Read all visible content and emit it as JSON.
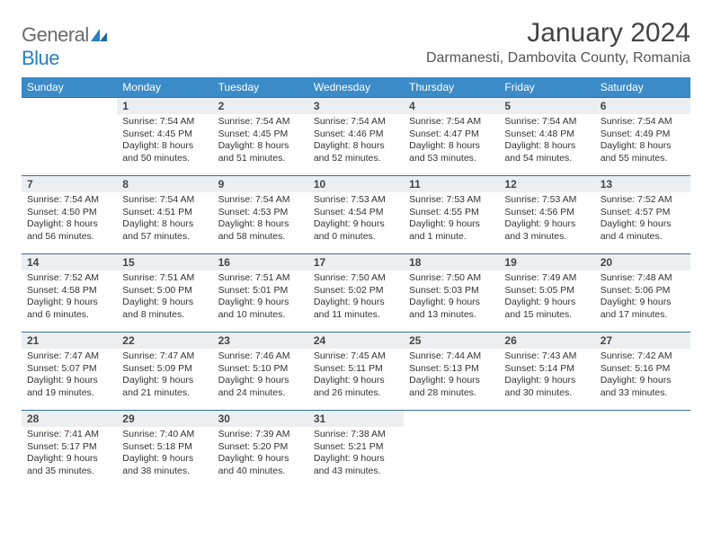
{
  "logo": {
    "general": "General",
    "blue": "Blue"
  },
  "title": "January 2024",
  "location": "Darmanesti, Dambovita County, Romania",
  "colors": {
    "header_bg": "#3b8bc8",
    "header_text": "#ffffff",
    "row_border": "#3b6fa0",
    "daynum_bg": "#eceff1",
    "logo_gray": "#6b6b6b",
    "logo_blue": "#2a7fbf"
  },
  "weekdays": [
    "Sunday",
    "Monday",
    "Tuesday",
    "Wednesday",
    "Thursday",
    "Friday",
    "Saturday"
  ],
  "weeks": [
    [
      {
        "day": "",
        "lines": []
      },
      {
        "day": "1",
        "lines": [
          "Sunrise: 7:54 AM",
          "Sunset: 4:45 PM",
          "Daylight: 8 hours",
          "and 50 minutes."
        ]
      },
      {
        "day": "2",
        "lines": [
          "Sunrise: 7:54 AM",
          "Sunset: 4:45 PM",
          "Daylight: 8 hours",
          "and 51 minutes."
        ]
      },
      {
        "day": "3",
        "lines": [
          "Sunrise: 7:54 AM",
          "Sunset: 4:46 PM",
          "Daylight: 8 hours",
          "and 52 minutes."
        ]
      },
      {
        "day": "4",
        "lines": [
          "Sunrise: 7:54 AM",
          "Sunset: 4:47 PM",
          "Daylight: 8 hours",
          "and 53 minutes."
        ]
      },
      {
        "day": "5",
        "lines": [
          "Sunrise: 7:54 AM",
          "Sunset: 4:48 PM",
          "Daylight: 8 hours",
          "and 54 minutes."
        ]
      },
      {
        "day": "6",
        "lines": [
          "Sunrise: 7:54 AM",
          "Sunset: 4:49 PM",
          "Daylight: 8 hours",
          "and 55 minutes."
        ]
      }
    ],
    [
      {
        "day": "7",
        "lines": [
          "Sunrise: 7:54 AM",
          "Sunset: 4:50 PM",
          "Daylight: 8 hours",
          "and 56 minutes."
        ]
      },
      {
        "day": "8",
        "lines": [
          "Sunrise: 7:54 AM",
          "Sunset: 4:51 PM",
          "Daylight: 8 hours",
          "and 57 minutes."
        ]
      },
      {
        "day": "9",
        "lines": [
          "Sunrise: 7:54 AM",
          "Sunset: 4:53 PM",
          "Daylight: 8 hours",
          "and 58 minutes."
        ]
      },
      {
        "day": "10",
        "lines": [
          "Sunrise: 7:53 AM",
          "Sunset: 4:54 PM",
          "Daylight: 9 hours",
          "and 0 minutes."
        ]
      },
      {
        "day": "11",
        "lines": [
          "Sunrise: 7:53 AM",
          "Sunset: 4:55 PM",
          "Daylight: 9 hours",
          "and 1 minute."
        ]
      },
      {
        "day": "12",
        "lines": [
          "Sunrise: 7:53 AM",
          "Sunset: 4:56 PM",
          "Daylight: 9 hours",
          "and 3 minutes."
        ]
      },
      {
        "day": "13",
        "lines": [
          "Sunrise: 7:52 AM",
          "Sunset: 4:57 PM",
          "Daylight: 9 hours",
          "and 4 minutes."
        ]
      }
    ],
    [
      {
        "day": "14",
        "lines": [
          "Sunrise: 7:52 AM",
          "Sunset: 4:58 PM",
          "Daylight: 9 hours",
          "and 6 minutes."
        ]
      },
      {
        "day": "15",
        "lines": [
          "Sunrise: 7:51 AM",
          "Sunset: 5:00 PM",
          "Daylight: 9 hours",
          "and 8 minutes."
        ]
      },
      {
        "day": "16",
        "lines": [
          "Sunrise: 7:51 AM",
          "Sunset: 5:01 PM",
          "Daylight: 9 hours",
          "and 10 minutes."
        ]
      },
      {
        "day": "17",
        "lines": [
          "Sunrise: 7:50 AM",
          "Sunset: 5:02 PM",
          "Daylight: 9 hours",
          "and 11 minutes."
        ]
      },
      {
        "day": "18",
        "lines": [
          "Sunrise: 7:50 AM",
          "Sunset: 5:03 PM",
          "Daylight: 9 hours",
          "and 13 minutes."
        ]
      },
      {
        "day": "19",
        "lines": [
          "Sunrise: 7:49 AM",
          "Sunset: 5:05 PM",
          "Daylight: 9 hours",
          "and 15 minutes."
        ]
      },
      {
        "day": "20",
        "lines": [
          "Sunrise: 7:48 AM",
          "Sunset: 5:06 PM",
          "Daylight: 9 hours",
          "and 17 minutes."
        ]
      }
    ],
    [
      {
        "day": "21",
        "lines": [
          "Sunrise: 7:47 AM",
          "Sunset: 5:07 PM",
          "Daylight: 9 hours",
          "and 19 minutes."
        ]
      },
      {
        "day": "22",
        "lines": [
          "Sunrise: 7:47 AM",
          "Sunset: 5:09 PM",
          "Daylight: 9 hours",
          "and 21 minutes."
        ]
      },
      {
        "day": "23",
        "lines": [
          "Sunrise: 7:46 AM",
          "Sunset: 5:10 PM",
          "Daylight: 9 hours",
          "and 24 minutes."
        ]
      },
      {
        "day": "24",
        "lines": [
          "Sunrise: 7:45 AM",
          "Sunset: 5:11 PM",
          "Daylight: 9 hours",
          "and 26 minutes."
        ]
      },
      {
        "day": "25",
        "lines": [
          "Sunrise: 7:44 AM",
          "Sunset: 5:13 PM",
          "Daylight: 9 hours",
          "and 28 minutes."
        ]
      },
      {
        "day": "26",
        "lines": [
          "Sunrise: 7:43 AM",
          "Sunset: 5:14 PM",
          "Daylight: 9 hours",
          "and 30 minutes."
        ]
      },
      {
        "day": "27",
        "lines": [
          "Sunrise: 7:42 AM",
          "Sunset: 5:16 PM",
          "Daylight: 9 hours",
          "and 33 minutes."
        ]
      }
    ],
    [
      {
        "day": "28",
        "lines": [
          "Sunrise: 7:41 AM",
          "Sunset: 5:17 PM",
          "Daylight: 9 hours",
          "and 35 minutes."
        ]
      },
      {
        "day": "29",
        "lines": [
          "Sunrise: 7:40 AM",
          "Sunset: 5:18 PM",
          "Daylight: 9 hours",
          "and 38 minutes."
        ]
      },
      {
        "day": "30",
        "lines": [
          "Sunrise: 7:39 AM",
          "Sunset: 5:20 PM",
          "Daylight: 9 hours",
          "and 40 minutes."
        ]
      },
      {
        "day": "31",
        "lines": [
          "Sunrise: 7:38 AM",
          "Sunset: 5:21 PM",
          "Daylight: 9 hours",
          "and 43 minutes."
        ]
      },
      {
        "day": "",
        "lines": []
      },
      {
        "day": "",
        "lines": []
      },
      {
        "day": "",
        "lines": []
      }
    ]
  ]
}
